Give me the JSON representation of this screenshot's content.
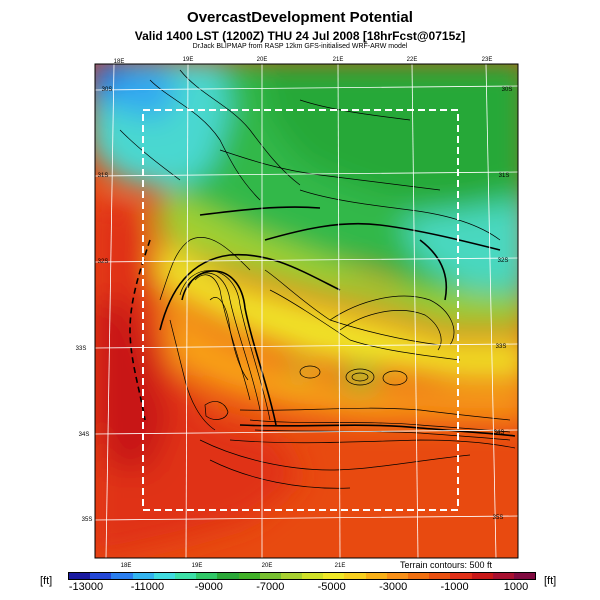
{
  "header": {
    "title": "OvercastDevelopment Potential",
    "valid_line": "Valid 1400 LST (1200Z) THU 24 Jul 2008 [18hrFcst@0715z]",
    "model_line": "DrJack BLIPMAP from RASP 12km GFS-initialised WRF-ARW model"
  },
  "map": {
    "top_lon_labels": [
      "18E",
      "19E",
      "20E",
      "21E",
      "22E",
      "23E"
    ],
    "bottom_lon_labels": [
      "18E",
      "19E",
      "20E",
      "21E"
    ],
    "left_lat_labels": [
      "30S",
      "31S",
      "32S",
      "33S",
      "34S",
      "35S"
    ],
    "right_lat_labels": [
      "30S",
      "31S",
      "32S",
      "33S",
      "34S",
      "35S"
    ],
    "terrain_note": "Terrain contours: 500 ft"
  },
  "legend": {
    "unit_left": "[ft]",
    "unit_right": "[ft]",
    "tick_labels": [
      "-13000",
      "-11000",
      "-9000",
      "-7000",
      "-5000",
      "-3000",
      "-1000",
      "1000"
    ],
    "colors": [
      "#1a1aa0",
      "#2448d8",
      "#2a7ef0",
      "#33b4f0",
      "#40dce0",
      "#3ce0a8",
      "#30c868",
      "#2aa838",
      "#40b028",
      "#78c030",
      "#a8d030",
      "#d0e028",
      "#f0e828",
      "#f8d020",
      "#f8b018",
      "#f89018",
      "#f07010",
      "#e85010",
      "#e03018",
      "#c81818",
      "#a81030",
      "#800a40"
    ]
  }
}
